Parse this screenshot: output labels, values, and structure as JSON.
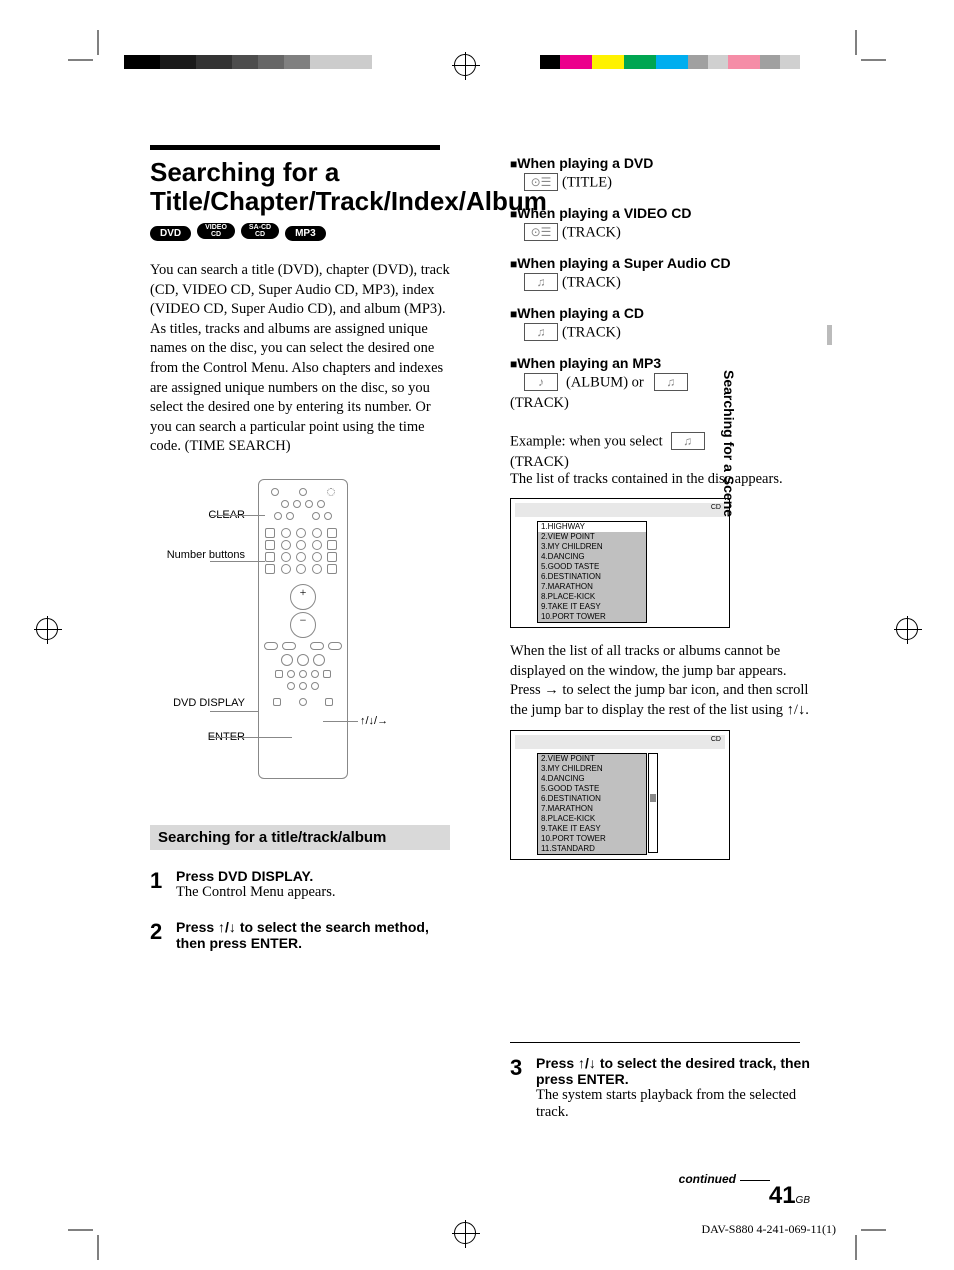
{
  "print": {
    "gray_blocks": [
      "#000000",
      "#1a1a1a",
      "#333333",
      "#4d4d4d",
      "#666666",
      "#808080",
      "#cccccc"
    ],
    "color_blocks": [
      "#000000",
      "#ec008c",
      "#fff200",
      "#00a651",
      "#00aeef",
      "#a0a0a0",
      "#f58da7",
      "#a0a0a0",
      "#d0d0d0"
    ]
  },
  "heading": "Searching for a Title/Chapter/Track/Index/Album",
  "badges": [
    "DVD",
    "VIDEO CD",
    "SA-CD CD",
    "MP3"
  ],
  "intro": "You can search a title (DVD), chapter (DVD), track (CD, VIDEO CD, Super Audio CD, MP3), index (VIDEO CD, Super Audio CD), and album (MP3). As titles, tracks and albums are assigned unique names on the disc, you can select the desired one from the Control Menu. Also chapters and indexes are assigned unique numbers on the disc, so you select the desired one by entering its number. Or you can search a particular point using the time code. (TIME SEARCH)",
  "remote": {
    "labels": {
      "clear": "CLEAR",
      "number": "Number buttons",
      "display": "DVD DISPLAY",
      "enter": "ENTER",
      "arrows": "↑/↓/→"
    }
  },
  "sub_heading": "Searching for a title/track/album",
  "steps": {
    "s1_num": "1",
    "s1_head": "Press DVD DISPLAY.",
    "s1_body": "The Control Menu appears.",
    "s2_num": "2",
    "s2_head": "Press ↑/↓ to select the search method, then press ENTER.",
    "s3_num": "3",
    "s3_head": "Press ↑/↓ to select the desired track, then press ENTER.",
    "s3_body": "The system starts playback from the selected track."
  },
  "modes": {
    "dvd_head": "When playing a DVD",
    "dvd_label": "(TITLE)",
    "vcd_head": "When playing a VIDEO CD",
    "vcd_label": "(TRACK)",
    "sacd_head": "When playing a Super Audio CD",
    "sacd_label": "(TRACK)",
    "cd_head": "When playing a CD",
    "cd_label": "(TRACK)",
    "mp3_head": "When playing an MP3",
    "mp3_label1": "(ALBUM) or",
    "mp3_label2": "(TRACK)"
  },
  "example_lead": "Example: when you select",
  "example_label": "(TRACK)",
  "example_body": "The list of tracks contained in the disc appears.",
  "tracks1": {
    "cd": "CD",
    "items": [
      "1.HIGHWAY",
      "2.VIEW POINT",
      "3.MY CHILDREN",
      "4.DANCING",
      "5.GOOD TASTE",
      "6.DESTINATION",
      "7.MARATHON",
      "8.PLACE-KICK",
      "9.TAKE IT EASY",
      "10.PORT TOWER"
    ]
  },
  "jump_text": "When the list of all tracks or albums cannot be displayed on the window, the jump bar appears. Press → to select the jump bar icon, and then scroll the jump bar to display the rest of the list using ↑/↓.",
  "tracks2": {
    "cd": "CD",
    "items": [
      "2.VIEW POINT",
      "3.MY CHILDREN",
      "4.DANCING",
      "5.GOOD TASTE",
      "6.DESTINATION",
      "7.MARATHON",
      "8.PLACE-KICK",
      "9.TAKE IT EASY",
      "10.PORT TOWER",
      "11.STANDARD"
    ]
  },
  "side_tab": "Searching for a Scene",
  "continued": "continued",
  "page_num": "41",
  "page_region": "GB",
  "footer_id": "DAV-S880 4-241-069-11(1)"
}
